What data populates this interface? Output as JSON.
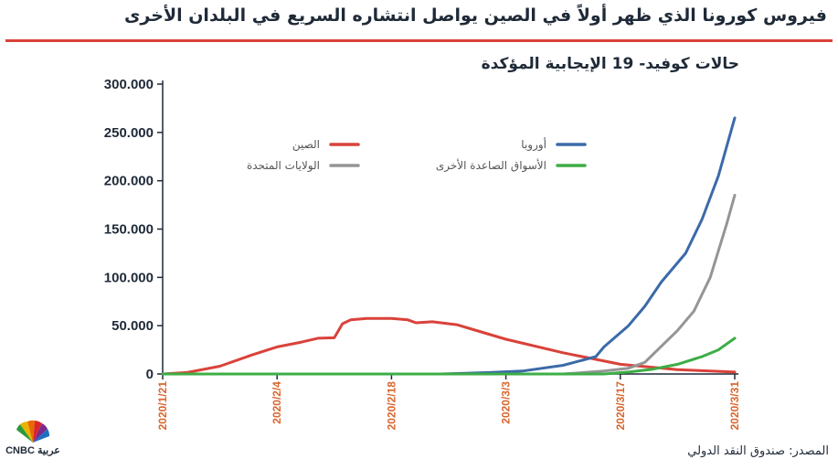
{
  "header": {
    "title": "فيروس كورونا الذي ظهر أولاً في الصين يواصل انتشاره السريع في البلدان الأخرى",
    "subtitle": "حالات كوفيد- 19 الإيجابية المؤكدة"
  },
  "footer": {
    "source": "المصدر: صندوق النقد الدولي",
    "logo_text": "CNBC عربية"
  },
  "colors": {
    "china": "#d9423a",
    "usa": "#959595",
    "europe": "#3b6aa8",
    "emerging": "#3dae46",
    "axis": "#1f2a38",
    "date_labels": "#d9662e"
  },
  "chart_data": {
    "type": "line",
    "x_dates": [
      "2020/1/21",
      "2020/2/4",
      "2020/2/18",
      "2020/3/3",
      "2020/3/17",
      "2020/3/31"
    ],
    "x_tick_labels": [
      "2020/1/21",
      "2020/2/4",
      "2020/2/18",
      "2020/3/3",
      "2020/3/17",
      "2020/3/31"
    ],
    "y_tick_labels": [
      "0",
      "50.000",
      "100.000",
      "150.000",
      "200.000",
      "250.000",
      "300.000"
    ],
    "ylim": [
      0,
      300000
    ],
    "legend_position": "top, inside plot",
    "series": [
      {
        "name": "الصين",
        "color_key": "china",
        "points": [
          [
            "2020/1/21",
            0
          ],
          [
            "2020/1/24",
            1500
          ],
          [
            "2020/1/28",
            8000
          ],
          [
            "2020/2/1",
            20000
          ],
          [
            "2020/2/4",
            28000
          ],
          [
            "2020/2/7",
            33000
          ],
          [
            "2020/2/9",
            37000
          ],
          [
            "2020/2/11",
            37500
          ],
          [
            "2020/2/12",
            52000
          ],
          [
            "2020/2/13",
            56000
          ],
          [
            "2020/2/15",
            57500
          ],
          [
            "2020/2/18",
            57500
          ],
          [
            "2020/2/20",
            56000
          ],
          [
            "2020/2/21",
            53000
          ],
          [
            "2020/2/23",
            54000
          ],
          [
            "2020/2/26",
            51000
          ],
          [
            "2020/3/3",
            36000
          ],
          [
            "2020/3/10",
            22000
          ],
          [
            "2020/3/17",
            10000
          ],
          [
            "2020/3/24",
            4500
          ],
          [
            "2020/3/31",
            2000
          ]
        ]
      },
      {
        "name": "أوروبا",
        "color_key": "europe",
        "points": [
          [
            "2020/1/21",
            0
          ],
          [
            "2020/2/24",
            0
          ],
          [
            "2020/3/1",
            1500
          ],
          [
            "2020/3/5",
            3000
          ],
          [
            "2020/3/10",
            9000
          ],
          [
            "2020/3/14",
            18000
          ],
          [
            "2020/3/15",
            28000
          ],
          [
            "2020/3/18",
            50000
          ],
          [
            "2020/3/20",
            70000
          ],
          [
            "2020/3/22",
            95000
          ],
          [
            "2020/3/25",
            125000
          ],
          [
            "2020/3/27",
            160000
          ],
          [
            "2020/3/29",
            205000
          ],
          [
            "2020/3/31",
            265000
          ]
        ]
      },
      {
        "name": "الولايات المتحدة",
        "color_key": "usa",
        "points": [
          [
            "2020/1/21",
            0
          ],
          [
            "2020/3/10",
            0
          ],
          [
            "2020/3/15",
            3000
          ],
          [
            "2020/3/18",
            6000
          ],
          [
            "2020/3/20",
            12000
          ],
          [
            "2020/3/24",
            45000
          ],
          [
            "2020/3/26",
            65000
          ],
          [
            "2020/3/28",
            100000
          ],
          [
            "2020/3/30",
            155000
          ],
          [
            "2020/3/31",
            185000
          ]
        ]
      },
      {
        "name": "الأسواق الصاعدة الأخرى",
        "color_key": "emerging",
        "points": [
          [
            "2020/1/21",
            0
          ],
          [
            "2020/3/15",
            0
          ],
          [
            "2020/3/18",
            2000
          ],
          [
            "2020/3/21",
            5000
          ],
          [
            "2020/3/24",
            10000
          ],
          [
            "2020/3/27",
            18000
          ],
          [
            "2020/3/29",
            25000
          ],
          [
            "2020/3/31",
            37000
          ]
        ]
      }
    ],
    "legend": [
      {
        "label": "الصين",
        "color_key": "china"
      },
      {
        "label": "أوروبا",
        "color_key": "europe"
      },
      {
        "label": "الولايات المتحدة",
        "color_key": "usa"
      },
      {
        "label": "الأسواق الصاعدة الأخرى",
        "color_key": "emerging"
      }
    ]
  }
}
